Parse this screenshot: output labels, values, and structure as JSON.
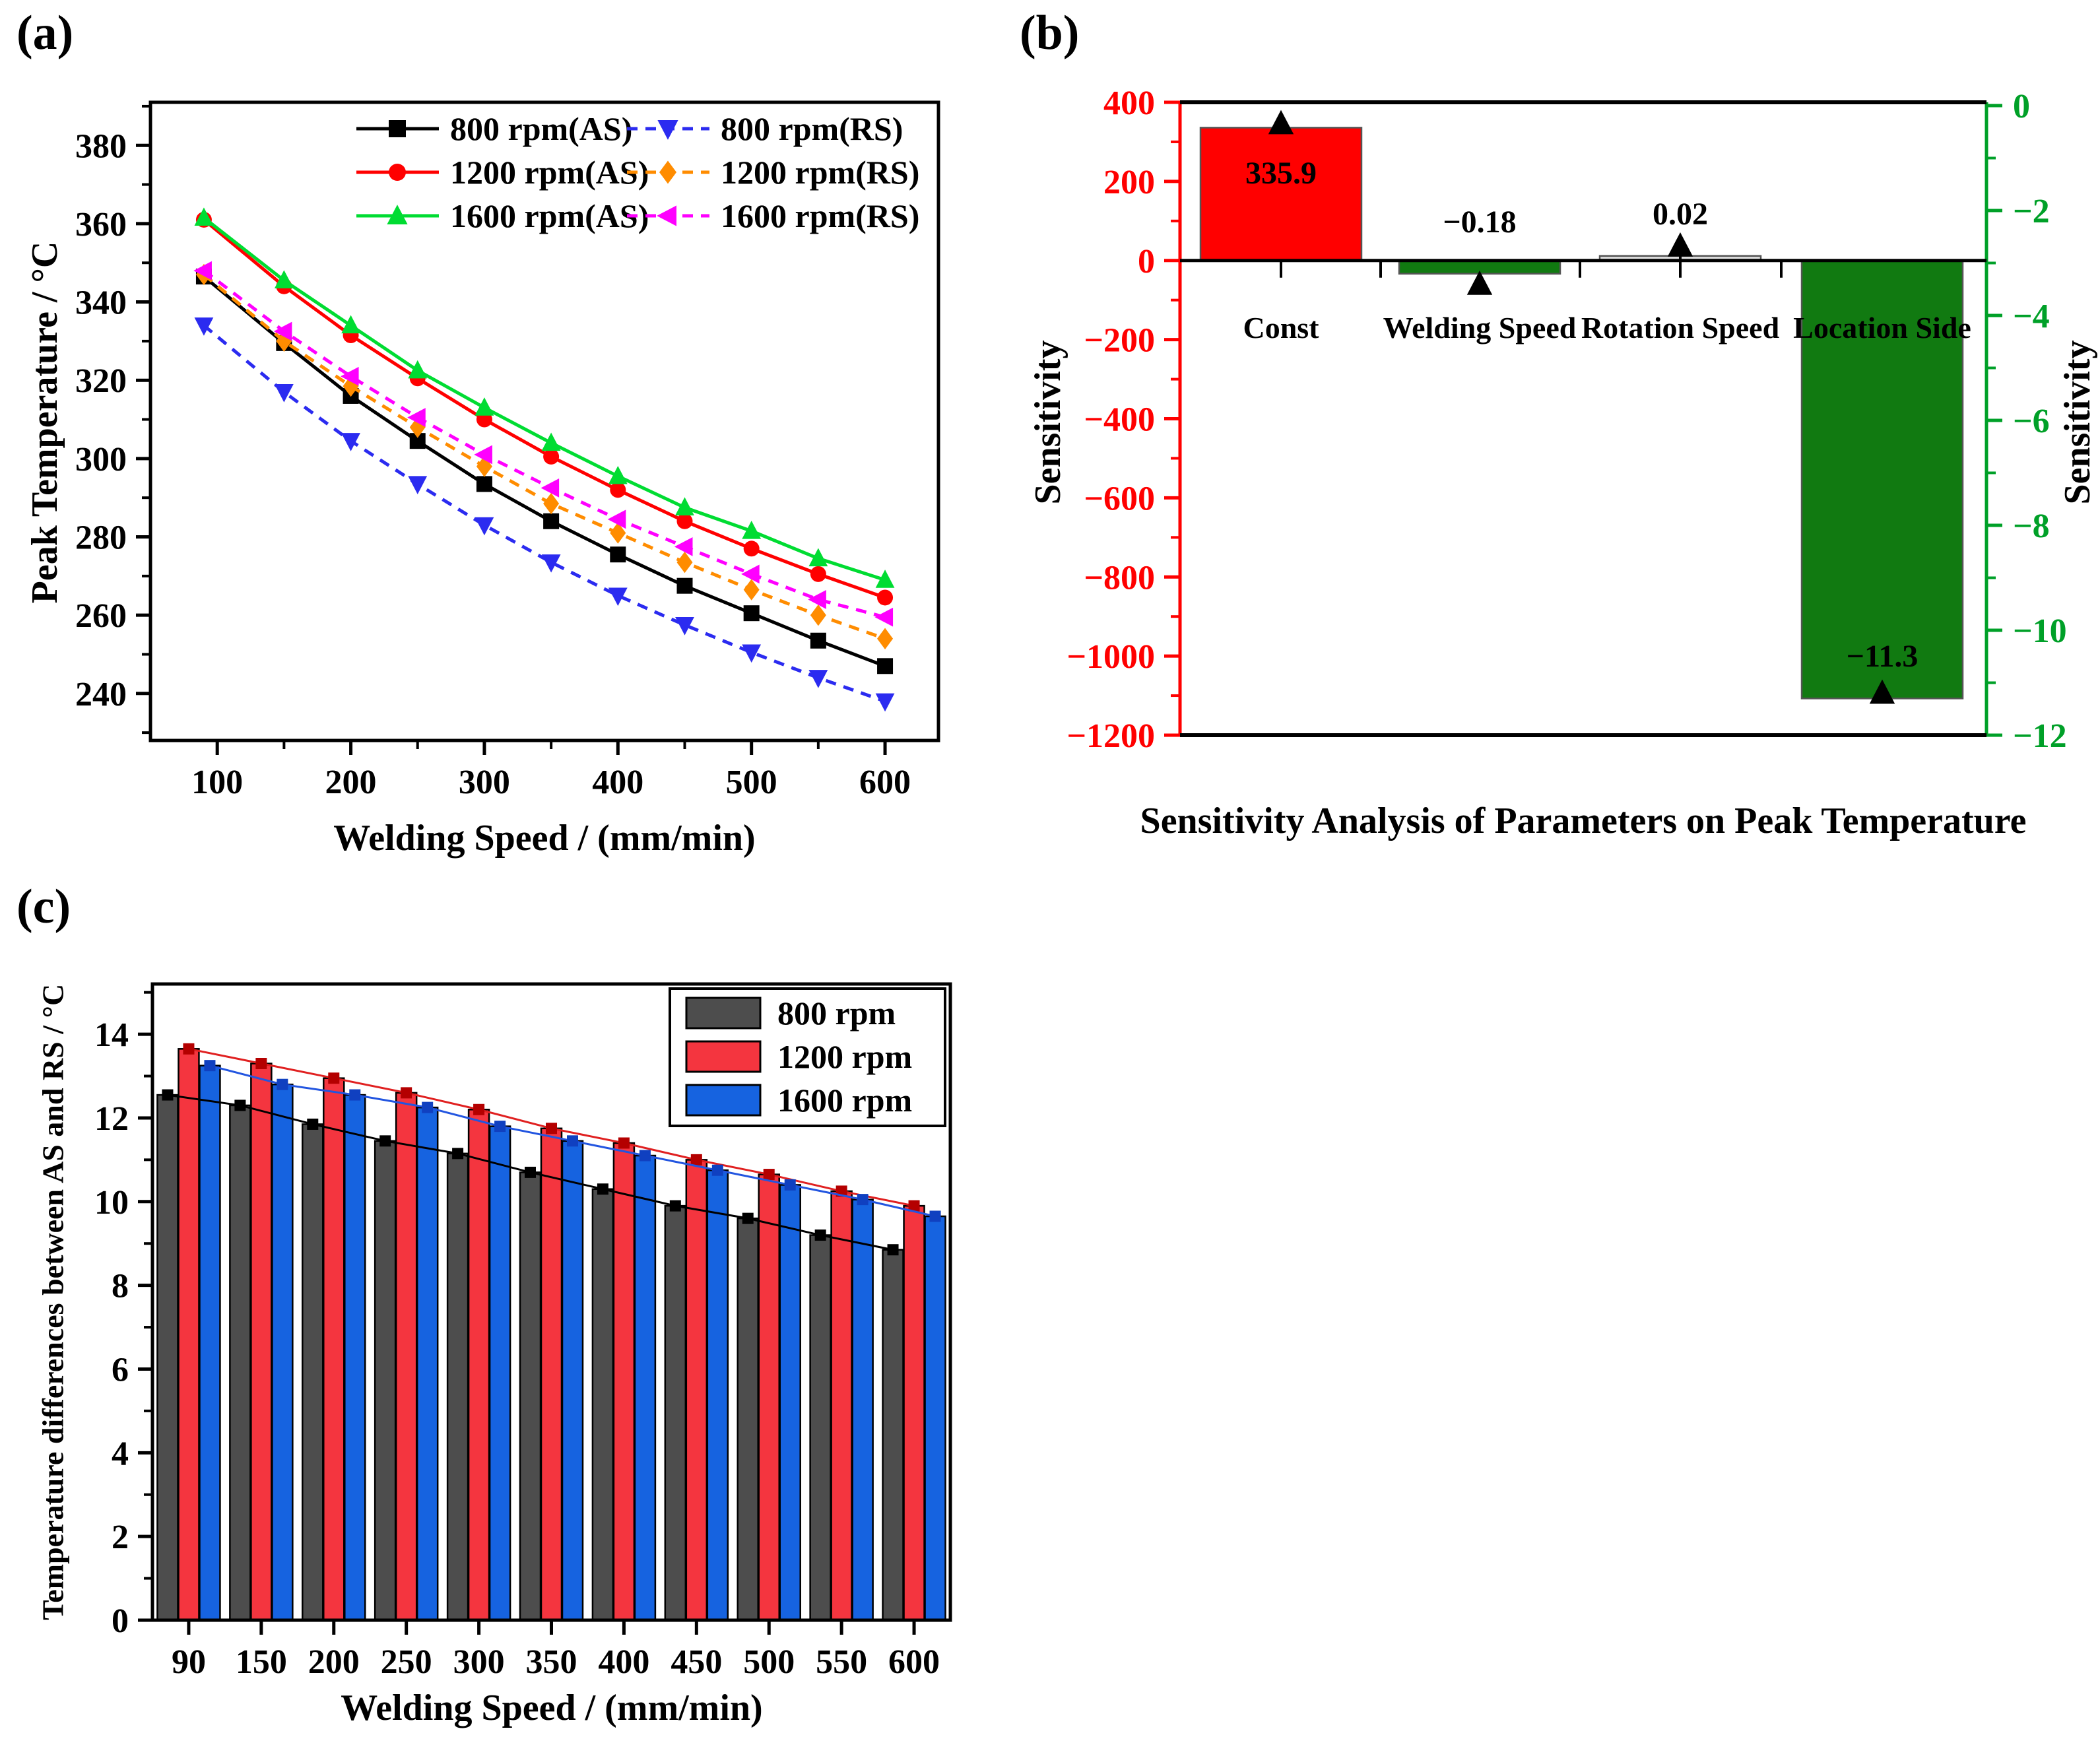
{
  "figure": {
    "background": "#ffffff"
  },
  "chart_data": [
    {
      "id": "a",
      "type": "line",
      "panel_label": "(a)",
      "xlabel": "Welding Speed / (mm/min)",
      "ylabel": "Peak Temperature / °C",
      "xlim": [
        50,
        640
      ],
      "ylim": [
        228,
        391
      ],
      "xticks": [
        100,
        200,
        300,
        400,
        500,
        600
      ],
      "xticks_minor": [
        150,
        250,
        350,
        450,
        550
      ],
      "yticks": [
        240,
        260,
        280,
        300,
        320,
        340,
        360,
        380
      ],
      "yticks_minor": [
        230,
        250,
        270,
        290,
        310,
        330,
        350,
        370,
        390
      ],
      "grid": false,
      "legend_position": "top-inside",
      "x": [
        90,
        150,
        200,
        250,
        300,
        350,
        400,
        450,
        500,
        550,
        600
      ],
      "series": [
        {
          "name": "800 rpm(AS)",
          "color": "#000000",
          "marker": "square",
          "line": "solid",
          "values": [
            346.5,
            329.5,
            316,
            304.5,
            293.5,
            284,
            275.5,
            267.5,
            260.5,
            253.5,
            247
          ]
        },
        {
          "name": "1200 rpm(AS)",
          "color": "#FF0000",
          "marker": "circle",
          "line": "solid",
          "values": [
            361,
            344,
            331.5,
            320.5,
            310,
            300.5,
            292,
            284,
            277,
            270.5,
            264.5
          ]
        },
        {
          "name": "1600 rpm(AS)",
          "color": "#00DC32",
          "marker": "triangle-up",
          "line": "solid",
          "values": [
            361.5,
            345.5,
            334,
            322.5,
            313,
            304,
            295.5,
            287.5,
            281.5,
            274.5,
            269
          ]
        },
        {
          "name": "800 rpm(RS)",
          "color": "#2B2BF0",
          "marker": "triangle-down",
          "line": "dashed",
          "values": [
            334,
            317,
            304.5,
            293.5,
            283,
            273.5,
            265,
            257.5,
            250.5,
            244,
            238
          ]
        },
        {
          "name": "1200 rpm(RS)",
          "color": "#FF8C00",
          "marker": "diamond",
          "line": "dashed",
          "values": [
            347,
            330,
            318.5,
            308,
            298,
            288.5,
            281,
            273.5,
            266.5,
            260,
            254
          ]
        },
        {
          "name": "1600 rpm(RS)",
          "color": "#FF00FF",
          "marker": "triangle-left",
          "line": "dashed",
          "values": [
            348,
            332.5,
            321,
            310.5,
            301,
            292.5,
            284.5,
            277.5,
            270.5,
            264,
            259.5
          ]
        }
      ]
    },
    {
      "id": "b",
      "type": "bar",
      "panel_label": "(b)",
      "xlabel": "Sensitivity Analysis of Parameters on Peak Temperature",
      "categories": [
        "Const",
        "Welding Speed",
        "Rotation Speed",
        "Location Side"
      ],
      "values": [
        335.9,
        -0.18,
        0.02,
        -11.3
      ],
      "value_labels": [
        "335.9",
        "−0.18",
        "0.02",
        "−11.3"
      ],
      "bar_colors": [
        "#FF0000",
        "#117A11",
        "#DCDCDC",
        "#117A11"
      ],
      "marker": "triangle-up",
      "marker_color": "#000000",
      "left_axis": {
        "label": "Sensitivity",
        "color": "#FF0000",
        "range": [
          -1200,
          400
        ],
        "ticks": [
          400,
          200,
          0,
          -200,
          -400,
          -600,
          -800,
          -1000,
          -1200
        ],
        "minor_step": 100
      },
      "right_axis": {
        "label": "Sensitivity",
        "color": "#00A028",
        "range": [
          -12,
          0
        ],
        "ticks": [
          0,
          -2,
          -4,
          -6,
          -8,
          -10,
          -12
        ],
        "minor_step": 1
      }
    },
    {
      "id": "c",
      "type": "bar",
      "panel_label": "(c)",
      "xlabel": "Welding Speed / (mm/min)",
      "ylabel": "Temperature differences between AS and RS / °C",
      "ylim": [
        0,
        15.2
      ],
      "yticks": [
        0,
        2,
        4,
        6,
        8,
        10,
        12,
        14
      ],
      "yticks_minor": [
        1,
        3,
        5,
        7,
        9,
        11,
        13,
        15
      ],
      "categories": [
        "90",
        "150",
        "200",
        "250",
        "300",
        "350",
        "400",
        "450",
        "500",
        "550",
        "600"
      ],
      "legend_position": "top-right-box",
      "series": [
        {
          "name": "800 rpm",
          "bar_color": "#4D4D4D",
          "line_color": "#000000",
          "marker_color": "#000000",
          "values": [
            12.55,
            12.3,
            11.85,
            11.45,
            11.15,
            10.7,
            10.3,
            9.9,
            9.6,
            9.2,
            8.85
          ]
        },
        {
          "name": "1200 rpm",
          "bar_color": "#F4353F",
          "line_color": "#E02020",
          "marker_color": "#B40000",
          "values": [
            13.65,
            13.3,
            12.95,
            12.6,
            12.2,
            11.75,
            11.4,
            11.0,
            10.65,
            10.25,
            9.9
          ]
        },
        {
          "name": "1600 rpm",
          "bar_color": "#1663E0",
          "line_color": "#2255E0",
          "marker_color": "#1040C0",
          "values": [
            13.25,
            12.8,
            12.55,
            12.25,
            11.8,
            11.45,
            11.1,
            10.75,
            10.4,
            10.05,
            9.65
          ]
        }
      ]
    }
  ]
}
